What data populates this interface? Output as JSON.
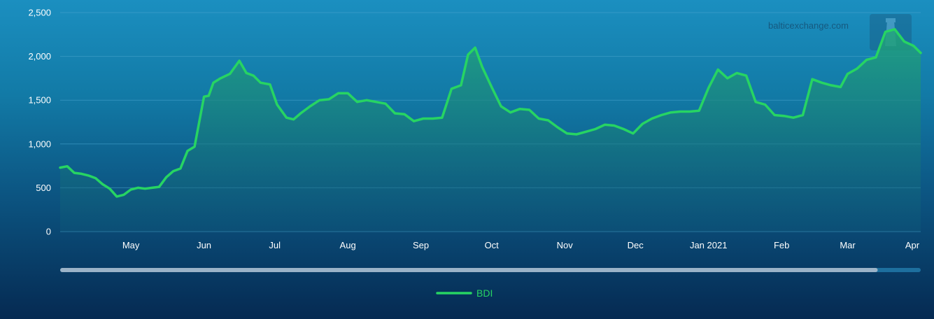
{
  "watermark": "balticexchange.com",
  "colors": {
    "line": "#27d463",
    "area_top": "#22a57a",
    "area_bottom": "#0f5a7a",
    "grid": "#4aa6cf",
    "scrollbar_track": "#1d6f9e",
    "scrollbar_thumb": "#9bb3c8"
  },
  "chart_data": {
    "type": "area",
    "series": [
      {
        "name": "BDI",
        "x": [
          "2020-04-01",
          "2020-04-04",
          "2020-04-07",
          "2020-04-10",
          "2020-04-13",
          "2020-04-16",
          "2020-04-19",
          "2020-04-22",
          "2020-04-25",
          "2020-04-28",
          "2020-05-01",
          "2020-05-04",
          "2020-05-07",
          "2020-05-10",
          "2020-05-13",
          "2020-05-16",
          "2020-05-19",
          "2020-05-22",
          "2020-05-25",
          "2020-05-28",
          "2020-06-01",
          "2020-06-03",
          "2020-06-05",
          "2020-06-08",
          "2020-06-12",
          "2020-06-16",
          "2020-06-19",
          "2020-06-22",
          "2020-06-25",
          "2020-06-29",
          "2020-07-02",
          "2020-07-06",
          "2020-07-09",
          "2020-07-12",
          "2020-07-16",
          "2020-07-20",
          "2020-07-24",
          "2020-07-28",
          "2020-08-01",
          "2020-08-05",
          "2020-08-09",
          "2020-08-13",
          "2020-08-17",
          "2020-08-21",
          "2020-08-25",
          "2020-08-29",
          "2020-09-02",
          "2020-09-06",
          "2020-09-10",
          "2020-09-14",
          "2020-09-18",
          "2020-09-21",
          "2020-09-24",
          "2020-09-27",
          "2020-10-01",
          "2020-10-05",
          "2020-10-09",
          "2020-10-13",
          "2020-10-17",
          "2020-10-21",
          "2020-10-25",
          "2020-10-29",
          "2020-11-02",
          "2020-11-06",
          "2020-11-10",
          "2020-11-14",
          "2020-11-18",
          "2020-11-22",
          "2020-11-26",
          "2020-11-30",
          "2020-12-04",
          "2020-12-08",
          "2020-12-12",
          "2020-12-16",
          "2020-12-20",
          "2020-12-24",
          "2020-12-28",
          "2021-01-01",
          "2021-01-05",
          "2021-01-09",
          "2021-01-13",
          "2021-01-17",
          "2021-01-21",
          "2021-01-25",
          "2021-01-29",
          "2021-02-02",
          "2021-02-06",
          "2021-02-10",
          "2021-02-14",
          "2021-02-18",
          "2021-02-22",
          "2021-02-26",
          "2021-03-01",
          "2021-03-05",
          "2021-03-09",
          "2021-03-13",
          "2021-03-17",
          "2021-03-21",
          "2021-03-25",
          "2021-03-29",
          "2021-04-01"
        ],
        "values": [
          730,
          745,
          670,
          660,
          640,
          610,
          540,
          490,
          400,
          420,
          480,
          500,
          490,
          500,
          510,
          620,
          690,
          720,
          920,
          970,
          1540,
          1550,
          1700,
          1750,
          1800,
          1950,
          1810,
          1780,
          1700,
          1680,
          1450,
          1300,
          1280,
          1350,
          1430,
          1500,
          1510,
          1580,
          1580,
          1480,
          1500,
          1480,
          1460,
          1350,
          1340,
          1260,
          1290,
          1290,
          1300,
          1630,
          1670,
          2020,
          2100,
          1880,
          1650,
          1430,
          1360,
          1400,
          1390,
          1290,
          1270,
          1190,
          1120,
          1110,
          1140,
          1170,
          1220,
          1210,
          1170,
          1120,
          1230,
          1290,
          1330,
          1360,
          1370,
          1370,
          1380,
          1640,
          1850,
          1750,
          1810,
          1780,
          1480,
          1450,
          1330,
          1320,
          1300,
          1330,
          1740,
          1700,
          1670,
          1650,
          1800,
          1860,
          1960,
          1990,
          2280,
          2310,
          2170,
          2120,
          2040
        ]
      }
    ],
    "categories": [
      "May",
      "Jun",
      "Jul",
      "Aug",
      "Sep",
      "Oct",
      "Nov",
      "Dec",
      "Jan 2021",
      "Feb",
      "Mar",
      "Apr"
    ],
    "y_ticks": [
      "0",
      "500",
      "1,000",
      "1,500",
      "2,000",
      "2,500"
    ],
    "ylim": [
      0,
      2500
    ],
    "xlim": [
      "2020-04-01",
      "2021-04-01"
    ],
    "grid": true,
    "legend": "bottom-center",
    "scrollbar_position": 0.95
  }
}
